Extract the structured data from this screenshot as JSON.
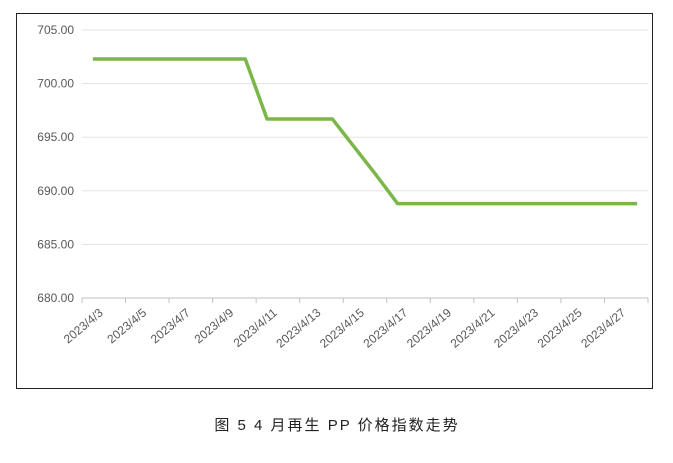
{
  "chart_data": {
    "type": "line",
    "caption": "图 5 4 月再生 PP 价格指数走势",
    "categories": [
      "2023/4/3",
      null,
      "2023/4/5",
      null,
      "2023/4/7",
      null,
      "2023/4/9",
      null,
      "2023/4/11",
      null,
      "2023/4/13",
      null,
      "2023/4/15",
      null,
      "2023/4/17",
      null,
      "2023/4/19",
      null,
      "2023/4/21",
      null,
      "2023/4/23",
      null,
      "2023/4/25",
      null,
      "2023/4/27",
      null
    ],
    "values": [
      702.3,
      702.3,
      702.3,
      702.3,
      702.3,
      702.3,
      702.3,
      702.3,
      696.7,
      696.7,
      696.7,
      696.7,
      694.1,
      691.5,
      688.8,
      688.8,
      688.8,
      688.8,
      688.8,
      688.8,
      688.8,
      688.8,
      688.8,
      688.8,
      688.8,
      688.8
    ],
    "color": "#7ab648",
    "ylim": [
      680,
      705
    ],
    "yticks": [
      {
        "value": 680,
        "label": "680.00"
      },
      {
        "value": 685,
        "label": "685.00"
      },
      {
        "value": 690,
        "label": "690.00"
      },
      {
        "value": 695,
        "label": "695.00"
      },
      {
        "value": 700,
        "label": "700.00"
      },
      {
        "value": 705,
        "label": "705.00"
      }
    ],
    "grid": true
  }
}
